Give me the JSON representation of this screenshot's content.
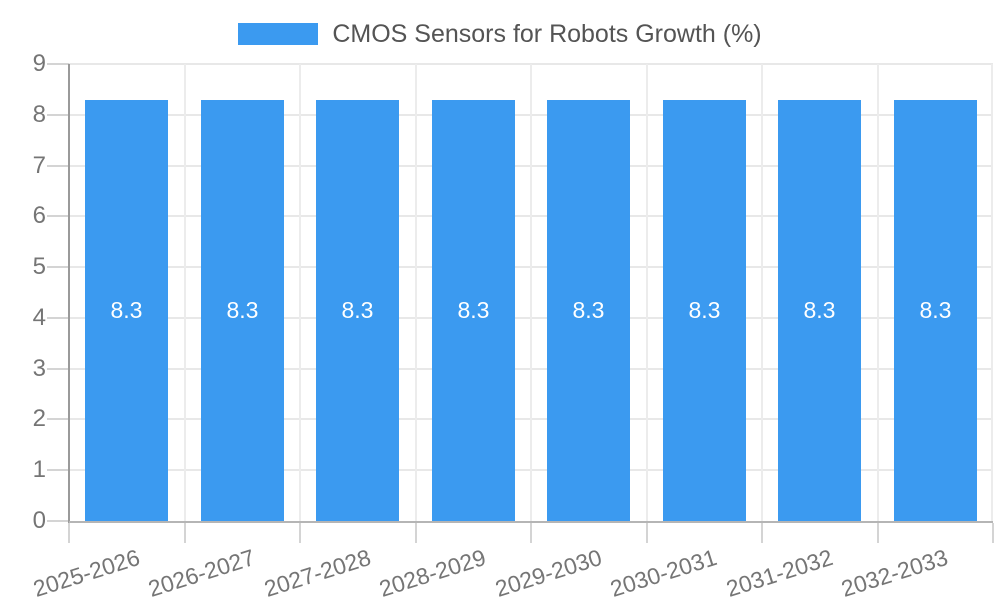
{
  "chart_data": {
    "type": "bar",
    "title": "",
    "legend": {
      "position": "top-center"
    },
    "categories": [
      "2025-2026",
      "2026-2027",
      "2027-2028",
      "2028-2029",
      "2029-2030",
      "2030-2031",
      "2031-2032",
      "2032-2033"
    ],
    "series": [
      {
        "name": "CMOS Sensors for Robots Growth (%)",
        "values": [
          8.3,
          8.3,
          8.3,
          8.3,
          8.3,
          8.3,
          8.3,
          8.3
        ],
        "data_labels": [
          "8.3",
          "8.3",
          "8.3",
          "8.3",
          "8.3",
          "8.3",
          "8.3",
          "8.3"
        ]
      }
    ],
    "xlabel": "",
    "ylabel": "",
    "ylim": [
      0,
      9
    ],
    "ytick_step": 1,
    "yticks": [
      "0",
      "1",
      "2",
      "3",
      "4",
      "5",
      "6",
      "7",
      "8",
      "9"
    ],
    "grid": true,
    "x_label_rotation_deg": -17.5
  },
  "colors": {
    "bar": "#3b9af0",
    "value_label": "#ffffff",
    "legend_text": "#545454",
    "axis_text": "#757575",
    "grid_h": "#e8e8e8",
    "grid_v": "#ececec",
    "tick": "#d4d4d4",
    "axis_line_x": "#b5b5b5",
    "axis_line_y": "#9a9a9a",
    "background": "#ffffff"
  }
}
